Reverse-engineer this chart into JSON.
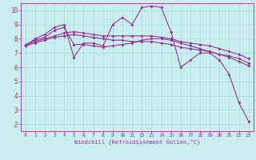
{
  "bg_color": "#c8eeed",
  "line_color": "#993399",
  "grid_color": "#aadddd",
  "xlabel": "Windchill (Refroidissement éolien,°C)",
  "xlabel_color": "#993399",
  "xlim": [
    -0.5,
    23.5
  ],
  "ylim": [
    1.5,
    10.5
  ],
  "yticks": [
    2,
    3,
    4,
    5,
    6,
    7,
    8,
    9,
    10
  ],
  "xticks": [
    0,
    1,
    2,
    3,
    4,
    5,
    6,
    7,
    8,
    9,
    10,
    11,
    12,
    13,
    14,
    15,
    16,
    17,
    18,
    19,
    20,
    21,
    22,
    23
  ],
  "series": [
    {
      "x": [
        0,
        1,
        2,
        3,
        4,
        5,
        6,
        7,
        8,
        9,
        10,
        11,
        12,
        13,
        14,
        15,
        16,
        17,
        18,
        19,
        20,
        21,
        22,
        23
      ],
      "y": [
        7.5,
        8.0,
        8.3,
        8.8,
        9.0,
        6.7,
        7.7,
        7.7,
        7.5,
        9.0,
        9.5,
        9.0,
        10.2,
        10.3,
        10.2,
        8.5,
        6.0,
        6.5,
        7.0,
        7.0,
        6.5,
        5.5,
        3.5,
        2.2
      ]
    },
    {
      "x": [
        0,
        1,
        2,
        3,
        4,
        5,
        6,
        7,
        8,
        9,
        10,
        11,
        12,
        13,
        14,
        15,
        16,
        17,
        18,
        19,
        20,
        21,
        22,
        23
      ],
      "y": [
        7.5,
        7.7,
        7.9,
        8.1,
        8.2,
        8.3,
        8.2,
        8.1,
        8.0,
        7.9,
        7.9,
        7.8,
        7.8,
        7.8,
        7.7,
        7.6,
        7.4,
        7.3,
        7.2,
        7.1,
        6.9,
        6.8,
        6.6,
        6.3
      ]
    },
    {
      "x": [
        0,
        1,
        2,
        3,
        4,
        5,
        6,
        7,
        8,
        9,
        10,
        11,
        12,
        13,
        14,
        15,
        16,
        17,
        18,
        19,
        20,
        21,
        22,
        23
      ],
      "y": [
        7.6,
        7.8,
        8.0,
        8.2,
        8.4,
        8.5,
        8.4,
        8.3,
        8.2,
        8.2,
        8.2,
        8.2,
        8.2,
        8.2,
        8.1,
        8.0,
        7.8,
        7.7,
        7.6,
        7.5,
        7.3,
        7.1,
        6.9,
        6.6
      ]
    },
    {
      "x": [
        0,
        1,
        2,
        3,
        4,
        5,
        6,
        7,
        8,
        9,
        10,
        11,
        12,
        13,
        14,
        15,
        16,
        17,
        18,
        19,
        20,
        21,
        22,
        23
      ],
      "y": [
        7.5,
        7.9,
        8.1,
        8.6,
        8.8,
        7.6,
        7.6,
        7.5,
        7.4,
        7.5,
        7.6,
        7.7,
        7.9,
        8.0,
        8.0,
        7.9,
        7.7,
        7.5,
        7.3,
        7.1,
        6.9,
        6.7,
        6.4,
        6.1
      ]
    }
  ]
}
